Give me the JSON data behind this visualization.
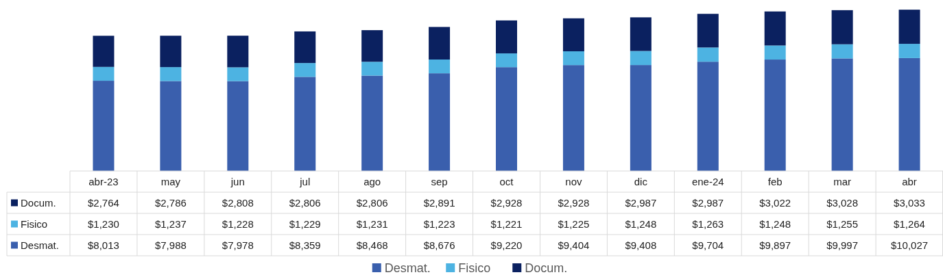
{
  "chart_data": {
    "type": "bar",
    "stacked": true,
    "categories": [
      "abr-23",
      "may",
      "jun",
      "jul",
      "ago",
      "sep",
      "oct",
      "nov",
      "dic",
      "ene-24",
      "feb",
      "mar",
      "abr"
    ],
    "series": [
      {
        "name": "Desmat.",
        "color": "#3a5fad",
        "values": [
          8013,
          7988,
          7978,
          8359,
          8468,
          8676,
          9220,
          9404,
          9408,
          9704,
          9897,
          9997,
          10027
        ],
        "value_labels": [
          "$8,013",
          "$7,988",
          "$7,978",
          "$8,359",
          "$8,468",
          "$8,676",
          "$9,220",
          "$9,404",
          "$9,408",
          "$9,704",
          "$9,897",
          "$9,997",
          "$10,027"
        ]
      },
      {
        "name": "Fisico",
        "color": "#4db3e2",
        "values": [
          1230,
          1237,
          1228,
          1229,
          1231,
          1223,
          1221,
          1225,
          1248,
          1263,
          1248,
          1255,
          1264
        ],
        "value_labels": [
          "$1,230",
          "$1,237",
          "$1,228",
          "$1,229",
          "$1,231",
          "$1,223",
          "$1,221",
          "$1,225",
          "$1,248",
          "$1,263",
          "$1,248",
          "$1,255",
          "$1,264"
        ]
      },
      {
        "name": "Docum.",
        "color": "#0b2160",
        "values": [
          2764,
          2786,
          2808,
          2806,
          2806,
          2891,
          2928,
          2928,
          2987,
          2987,
          3022,
          3028,
          3033
        ],
        "value_labels": [
          "$2,764",
          "$2,786",
          "$2,808",
          "$2,806",
          "$2,806",
          "$2,891",
          "$2,928",
          "$2,928",
          "$2,987",
          "$2,987",
          "$3,022",
          "$3,028",
          "$3,033"
        ]
      }
    ],
    "legend": "bottom"
  }
}
